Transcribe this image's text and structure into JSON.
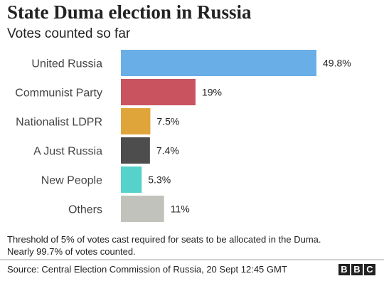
{
  "title": "State Duma election in Russia",
  "subtitle": "Votes counted so far",
  "chart_data": {
    "type": "bar",
    "orientation": "horizontal",
    "categories": [
      "United Russia",
      "Communist Party",
      "Nationalist LDPR",
      "A Just Russia",
      "New People",
      "Others"
    ],
    "values": [
      49.8,
      19,
      7.5,
      7.4,
      5.3,
      11
    ],
    "labels": [
      "49.8%",
      "19%",
      "7.5%",
      "7.4%",
      "5.3%",
      "11%"
    ],
    "colors": [
      "#6aaee8",
      "#c9535f",
      "#e0a53a",
      "#4d4d4d",
      "#57d2cb",
      "#c2c2bd"
    ],
    "xlim": [
      0,
      49.8
    ],
    "grid": false,
    "legend": "none"
  },
  "footnote": {
    "line1": "Threshold of 5% of votes cast required for seats to be allocated in the Duma.",
    "line2": "Nearly 99.7% of votes counted."
  },
  "source": "Source: Central Election Commission of Russia, 20 Sept 12:45 GMT",
  "logo": [
    "B",
    "B",
    "C"
  ]
}
